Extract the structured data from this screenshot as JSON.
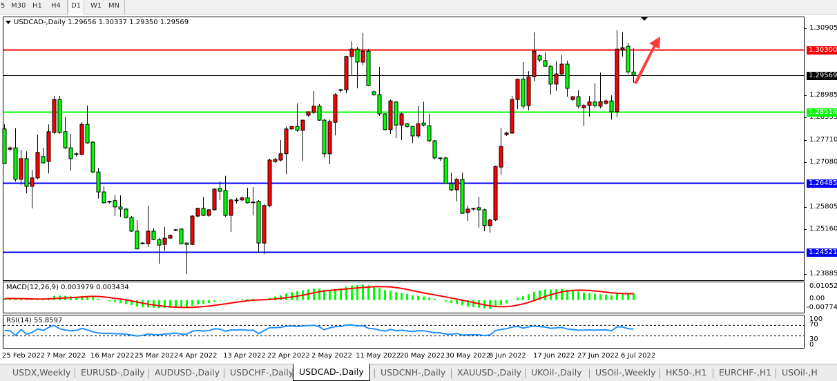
{
  "timeframes": {
    "items": [
      "5",
      "M30",
      "H1",
      "H4",
      "D1",
      "W1",
      "MN"
    ],
    "active": "D1"
  },
  "chart": {
    "header": "USDCAD-,Daily  1.29656 1.30337 1.29350 1.29569",
    "symbol": "USDCAD-,Daily",
    "ohlc": {
      "open": 1.29656,
      "high": 1.30337,
      "low": 1.2935,
      "close": 1.29569
    },
    "colors": {
      "bull": "#ff0000",
      "bear": "#00ff00",
      "resistance": "#ff0000",
      "support_green": "#00ff00",
      "support_blue": "#0000ff",
      "current": "#000000",
      "arrow": "#ff3333"
    },
    "price_axis": [
      "1.30905",
      "1.28985",
      "1.28355",
      "1.27710",
      "1.27080",
      "1.25805",
      "1.25160",
      "1.23885"
    ],
    "price_axis_values": [
      1.30905,
      1.28985,
      1.28355,
      1.2771,
      1.2708,
      1.25805,
      1.2516,
      1.23885
    ],
    "levels": [
      {
        "label": "1.30300",
        "value": 1.303,
        "color": "#ff0000",
        "text": "#ffffff"
      },
      {
        "label": "1.29569",
        "value": 1.29569,
        "color": "#000000",
        "text": "#ffffff"
      },
      {
        "label": "1.28516",
        "value": 1.28516,
        "color": "#00ff00",
        "text": "#ffffff"
      },
      {
        "label": "1.26485",
        "value": 1.26485,
        "color": "#0000ff",
        "text": "#ffffff"
      },
      {
        "label": "1.24521",
        "value": 1.24521,
        "color": "#0000ff",
        "text": "#ffffff"
      }
    ],
    "candles": [
      [
        1.2803,
        1.2816,
        1.2704,
        1.2704
      ],
      [
        1.2745,
        1.2753,
        1.2739,
        1.2749
      ],
      [
        1.2749,
        1.2805,
        1.2653,
        1.2659
      ],
      [
        1.2659,
        1.2743,
        1.2643,
        1.2718
      ],
      [
        1.2718,
        1.2739,
        1.2619,
        1.2639
      ],
      [
        1.2639,
        1.2686,
        1.2576,
        1.2663
      ],
      [
        1.2663,
        1.2787,
        1.2659,
        1.2736
      ],
      [
        1.2724,
        1.2749,
        1.2704,
        1.2706
      ],
      [
        1.271,
        1.2816,
        1.2676,
        1.2795
      ],
      [
        1.2793,
        1.2897,
        1.2789,
        1.2887
      ],
      [
        1.2887,
        1.2897,
        1.2789,
        1.2793
      ],
      [
        1.2795,
        1.2838,
        1.2745,
        1.2749
      ],
      [
        1.2749,
        1.2789,
        1.2684,
        1.2718
      ],
      [
        1.2732,
        1.2736,
        1.2724,
        1.2732
      ],
      [
        1.273,
        1.2822,
        1.2728,
        1.2816
      ],
      [
        1.2816,
        1.287,
        1.2761,
        1.2763
      ],
      [
        1.2765,
        1.2769,
        1.2676,
        1.268
      ],
      [
        1.268,
        1.2692,
        1.2604,
        1.2623
      ],
      [
        1.2623,
        1.2639,
        1.259,
        1.2592
      ],
      [
        1.2594,
        1.2598,
        1.259,
        1.2596
      ],
      [
        1.2598,
        1.2615,
        1.2554,
        1.258
      ],
      [
        1.258,
        1.2613,
        1.2552,
        1.2574
      ],
      [
        1.2574,
        1.2578,
        1.2546,
        1.255
      ],
      [
        1.255,
        1.2554,
        1.2509,
        1.2511
      ],
      [
        1.2511,
        1.2542,
        1.246,
        1.246
      ],
      [
        1.2477,
        1.2479,
        1.2473,
        1.2475
      ],
      [
        1.2475,
        1.2584,
        1.2465,
        1.2511
      ],
      [
        1.2511,
        1.2519,
        1.2485,
        1.2487
      ],
      [
        1.2487,
        1.2491,
        1.2418,
        1.2471
      ],
      [
        1.2473,
        1.2523,
        1.2455,
        1.2491
      ],
      [
        1.2491,
        1.2501,
        1.2489,
        1.2499
      ],
      [
        1.2513,
        1.2517,
        1.2511,
        1.2515
      ],
      [
        1.2517,
        1.2519,
        1.2475,
        1.2475
      ],
      [
        1.2477,
        1.2479,
        1.2388,
        1.2473
      ],
      [
        1.2473,
        1.2556,
        1.2471,
        1.2554
      ],
      [
        1.2554,
        1.2578,
        1.255,
        1.2576
      ],
      [
        1.2576,
        1.2609,
        1.2554,
        1.2556
      ],
      [
        1.2556,
        1.2574,
        1.2552,
        1.2572
      ],
      [
        1.2572,
        1.2633,
        1.257,
        1.2631
      ],
      [
        1.2633,
        1.2653,
        1.26,
        1.2625
      ],
      [
        1.2627,
        1.2669,
        1.2552,
        1.2556
      ],
      [
        1.2556,
        1.2604,
        1.2509,
        1.26
      ],
      [
        1.26,
        1.2606,
        1.259,
        1.26
      ],
      [
        1.26,
        1.261,
        1.2596,
        1.2606
      ],
      [
        1.2606,
        1.2635,
        1.259,
        1.2592
      ],
      [
        1.2594,
        1.2637,
        1.2556,
        1.2594
      ],
      [
        1.2596,
        1.26,
        1.245,
        1.2477
      ],
      [
        1.2477,
        1.2588,
        1.2446,
        1.2584
      ],
      [
        1.2584,
        1.2718,
        1.258,
        1.2714
      ],
      [
        1.271,
        1.272,
        1.2706,
        1.2716
      ],
      [
        1.2714,
        1.2771,
        1.271,
        1.2732
      ],
      [
        1.2732,
        1.281,
        1.2674,
        1.2803
      ],
      [
        1.2803,
        1.2812,
        1.2801,
        1.281
      ],
      [
        1.281,
        1.2876,
        1.2795,
        1.2799
      ],
      [
        1.2799,
        1.283,
        1.2712,
        1.2828
      ],
      [
        1.2842,
        1.2852,
        1.2838,
        1.2852
      ],
      [
        1.285,
        1.2911,
        1.2846,
        1.2868
      ],
      [
        1.2868,
        1.2874,
        1.2826,
        1.2828
      ],
      [
        1.2828,
        1.2832,
        1.2722,
        1.2732
      ],
      [
        1.2732,
        1.283,
        1.2702,
        1.2824
      ],
      [
        1.2822,
        1.2905,
        1.2785,
        1.2901
      ],
      [
        1.2913,
        1.2917,
        1.2907,
        1.2915
      ],
      [
        1.2915,
        1.3012,
        1.2905,
        1.301
      ],
      [
        1.301,
        1.3053,
        1.2958,
        1.3031
      ],
      [
        1.3031,
        1.3037,
        1.2919,
        1.2994
      ],
      [
        1.2994,
        1.3077,
        1.2985,
        1.3025
      ],
      [
        1.3025,
        1.3031,
        1.2925,
        1.2927
      ],
      [
        1.2909,
        1.2913,
        1.2897,
        1.2901
      ],
      [
        1.2901,
        1.298,
        1.284,
        1.2846
      ],
      [
        1.2846,
        1.2848,
        1.2799,
        1.2801
      ],
      [
        1.2801,
        1.2887,
        1.2789,
        1.2883
      ],
      [
        1.288,
        1.2883,
        1.2777,
        1.2814
      ],
      [
        1.2814,
        1.285,
        1.2771,
        1.2846
      ],
      [
        1.2818,
        1.282,
        1.2806,
        1.281
      ],
      [
        1.281,
        1.2812,
        1.2763,
        1.2783
      ],
      [
        1.2783,
        1.287,
        1.2777,
        1.2818
      ],
      [
        1.282,
        1.2881,
        1.281,
        1.2814
      ],
      [
        1.2812,
        1.2846,
        1.2765,
        1.2769
      ],
      [
        1.2769,
        1.2771,
        1.2716,
        1.272
      ],
      [
        1.272,
        1.2722,
        1.2712,
        1.272
      ],
      [
        1.272,
        1.2724,
        1.2645,
        1.2647
      ],
      [
        1.2647,
        1.2678,
        1.2625,
        1.2629
      ],
      [
        1.2629,
        1.2663,
        1.2596,
        1.2659
      ],
      [
        1.2659,
        1.2678,
        1.256,
        1.2562
      ],
      [
        1.2564,
        1.2584,
        1.254,
        1.2574
      ],
      [
        1.2576,
        1.2578,
        1.257,
        1.2576
      ],
      [
        1.2578,
        1.2609,
        1.2521,
        1.2572
      ],
      [
        1.2572,
        1.2575,
        1.2511,
        1.2527
      ],
      [
        1.2527,
        1.2547,
        1.2507,
        1.2543
      ],
      [
        1.2543,
        1.2698,
        1.254,
        1.2696
      ],
      [
        1.2694,
        1.2805,
        1.2672,
        1.2753
      ],
      [
        1.2787,
        1.2795,
        1.2783,
        1.2791
      ],
      [
        1.2791,
        1.2897,
        1.2789,
        1.2887
      ],
      [
        1.2887,
        1.2945,
        1.286,
        1.2945
      ],
      [
        1.2945,
        1.2994,
        1.286,
        1.2868
      ],
      [
        1.287,
        1.2968,
        1.2856,
        1.2952
      ],
      [
        1.2952,
        1.3079,
        1.2939,
        1.3025
      ],
      [
        1.3012,
        1.3016,
        1.2994,
        1.3
      ],
      [
        1.2998,
        1.3022,
        1.298,
        1.2982
      ],
      [
        1.2982,
        1.2985,
        1.2901,
        1.2931
      ],
      [
        1.2931,
        1.2996,
        1.2911,
        1.296
      ],
      [
        1.296,
        1.3014,
        1.2954,
        1.2988
      ],
      [
        1.2988,
        1.2998,
        1.2895,
        1.2919
      ],
      [
        1.2887,
        1.2897,
        1.2883,
        1.2895
      ],
      [
        1.2895,
        1.2913,
        1.2862,
        1.2868
      ],
      [
        1.2864,
        1.2874,
        1.2812,
        1.287
      ],
      [
        1.287,
        1.2897,
        1.2838,
        1.288
      ],
      [
        1.288,
        1.2933,
        1.2862,
        1.287
      ],
      [
        1.2868,
        1.2964,
        1.2862,
        1.2881
      ],
      [
        1.2876,
        1.2888,
        1.2872,
        1.2883
      ],
      [
        1.2883,
        1.2899,
        1.283,
        1.2852
      ],
      [
        1.2852,
        1.3085,
        1.2836,
        1.3031
      ],
      [
        1.3031,
        1.3079,
        1.301,
        1.3035
      ],
      [
        1.3039,
        1.3049,
        1.2958,
        1.2966
      ],
      [
        1.29656,
        1.30337,
        1.2935,
        1.29569
      ]
    ]
  },
  "macd": {
    "label": "MACD(12,26,9) 0.003979 0.003434",
    "axis": [
      "0.01052",
      "0.00",
      "-0.007744"
    ],
    "range": [
      -0.007744,
      0.01052
    ]
  },
  "rsi": {
    "label": "RSI(14) 55.8597",
    "axis": [
      "100",
      "70",
      "30",
      "0"
    ],
    "levels": [
      70,
      30
    ]
  },
  "dates": [
    "25 Feb 2022",
    "7 Mar 2022",
    "16 Mar 2022",
    "25 Mar 2022",
    "4 Apr 2022",
    "13 Apr 2022",
    "22 Apr 2022",
    "2 May 2022",
    "11 May 2022",
    "20 May 2022",
    "30 May 2022",
    "8 Jun 2022",
    "17 Jun 2022",
    "27 Jun 2022",
    "6 Jul 2022"
  ],
  "tabs": {
    "items": [
      "USDX,Weekly",
      "EURUSD-,Daily",
      "AUDUSD-,Daily",
      "USDCHF-,Daily",
      "USDCAD-,Daily",
      "USDCNH-,Daily",
      "XAUUSD-,Daily",
      "UKOil-,Daily",
      "USOil-,Weekly",
      "HK50-,H1",
      "EURCHF-,H1",
      "USOil-,H"
    ],
    "active": "USDCAD-,Daily"
  }
}
